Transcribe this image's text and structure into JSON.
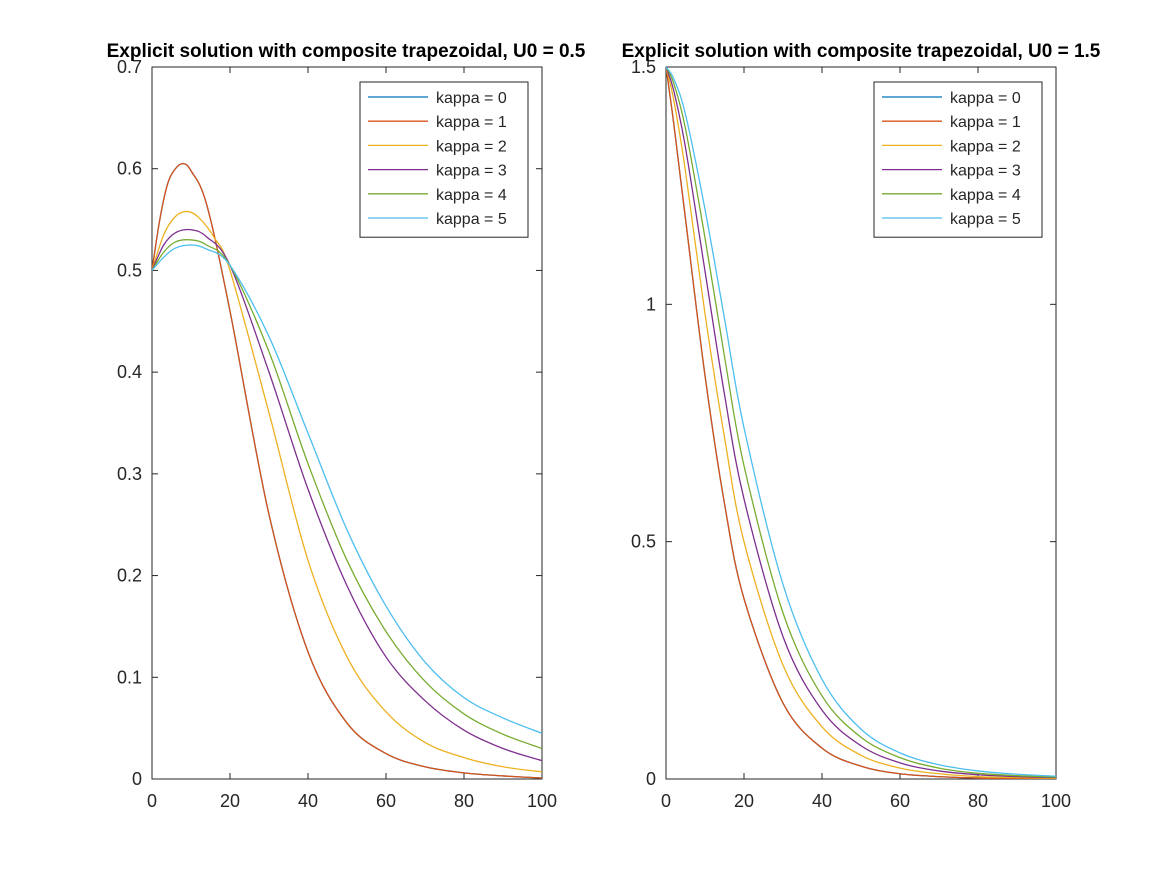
{
  "figure": {
    "background": "#ffffff",
    "axes_color": "#262626"
  },
  "chart_data": [
    {
      "type": "line",
      "title": "Explicit solution with composite trapezoidal, U0 = 0.5",
      "xlabel": "",
      "ylabel": "",
      "xlim": [
        0,
        100
      ],
      "ylim": [
        0,
        0.7
      ],
      "xticks": [
        "0",
        "20",
        "40",
        "60",
        "80",
        "100"
      ],
      "yticks": [
        "0",
        "0.1",
        "0.2",
        "0.3",
        "0.4",
        "0.5",
        "0.6",
        "0.7"
      ],
      "grid": false,
      "legend_position": "top-right",
      "series": [
        {
          "name": "kappa = 0",
          "color": "#0072BD",
          "x": [
            0,
            2,
            4,
            6,
            8,
            10,
            14,
            20,
            30,
            40,
            50,
            60,
            70,
            80,
            90,
            100
          ],
          "y": [
            0.5,
            0.55,
            0.585,
            0.6,
            0.605,
            0.598,
            0.565,
            0.46,
            0.26,
            0.125,
            0.055,
            0.025,
            0.012,
            0.006,
            0.003,
            0.001
          ]
        },
        {
          "name": "kappa = 1",
          "color": "#D95319",
          "x": [
            0,
            2,
            4,
            6,
            8,
            10,
            14,
            20,
            30,
            40,
            50,
            60,
            70,
            80,
            90,
            100
          ],
          "y": [
            0.5,
            0.55,
            0.585,
            0.6,
            0.605,
            0.598,
            0.565,
            0.46,
            0.26,
            0.125,
            0.055,
            0.025,
            0.012,
            0.006,
            0.003,
            0.001
          ]
        },
        {
          "name": "kappa = 2",
          "color": "#EDB120",
          "x": [
            0,
            3,
            6,
            9,
            12,
            16,
            20,
            30,
            40,
            50,
            60,
            70,
            80,
            90,
            100
          ],
          "y": [
            0.5,
            0.535,
            0.553,
            0.558,
            0.552,
            0.532,
            0.5,
            0.36,
            0.215,
            0.12,
            0.066,
            0.036,
            0.021,
            0.012,
            0.007
          ]
        },
        {
          "name": "kappa = 3",
          "color": "#7E2F8E",
          "x": [
            0,
            3,
            6,
            10,
            14,
            20,
            30,
            40,
            50,
            60,
            70,
            80,
            90,
            100
          ],
          "y": [
            0.5,
            0.525,
            0.537,
            0.54,
            0.533,
            0.505,
            0.4,
            0.285,
            0.19,
            0.12,
            0.077,
            0.048,
            0.03,
            0.018
          ]
        },
        {
          "name": "kappa = 4",
          "color": "#77AC30",
          "x": [
            0,
            3,
            6,
            10,
            14,
            20,
            30,
            40,
            50,
            60,
            70,
            80,
            90,
            100
          ],
          "y": [
            0.5,
            0.518,
            0.528,
            0.53,
            0.525,
            0.505,
            0.42,
            0.31,
            0.215,
            0.145,
            0.096,
            0.064,
            0.044,
            0.03
          ]
        },
        {
          "name": "kappa = 5",
          "color": "#4DBEEE",
          "x": [
            0,
            3,
            6,
            10,
            14,
            20,
            30,
            40,
            50,
            60,
            70,
            80,
            90,
            100
          ],
          "y": [
            0.5,
            0.513,
            0.522,
            0.525,
            0.521,
            0.505,
            0.435,
            0.34,
            0.245,
            0.17,
            0.115,
            0.08,
            0.06,
            0.045
          ]
        }
      ]
    },
    {
      "type": "line",
      "title": "Explicit solution with composite trapezoidal, U0 = 1.5",
      "xlabel": "",
      "ylabel": "",
      "xlim": [
        0,
        100
      ],
      "ylim": [
        0,
        1.5
      ],
      "xticks": [
        "0",
        "20",
        "40",
        "60",
        "80",
        "100"
      ],
      "yticks": [
        "0",
        "0.5",
        "1",
        "1.5"
      ],
      "grid": false,
      "legend_position": "top-right",
      "series": [
        {
          "name": "kappa = 0",
          "color": "#0072BD",
          "x": [
            0,
            2,
            5,
            10,
            15,
            20,
            30,
            40,
            50,
            60,
            70,
            80,
            90,
            100
          ],
          "y": [
            1.5,
            1.38,
            1.18,
            0.85,
            0.58,
            0.38,
            0.16,
            0.065,
            0.027,
            0.011,
            0.005,
            0.002,
            0.001,
            0.0005
          ]
        },
        {
          "name": "kappa = 1",
          "color": "#D95319",
          "x": [
            0,
            2,
            5,
            10,
            15,
            20,
            30,
            40,
            50,
            60,
            70,
            80,
            90,
            100
          ],
          "y": [
            1.5,
            1.38,
            1.18,
            0.85,
            0.58,
            0.38,
            0.16,
            0.065,
            0.027,
            0.011,
            0.005,
            0.002,
            0.001,
            0.0005
          ]
        },
        {
          "name": "kappa = 2",
          "color": "#EDB120",
          "x": [
            0,
            2,
            5,
            10,
            15,
            20,
            30,
            40,
            50,
            60,
            70,
            80,
            90,
            100
          ],
          "y": [
            1.5,
            1.43,
            1.28,
            0.98,
            0.72,
            0.5,
            0.24,
            0.11,
            0.05,
            0.023,
            0.011,
            0.005,
            0.003,
            0.0015
          ]
        },
        {
          "name": "kappa = 3",
          "color": "#7E2F8E",
          "x": [
            0,
            2,
            5,
            10,
            15,
            20,
            30,
            40,
            50,
            60,
            70,
            80,
            90,
            100
          ],
          "y": [
            1.5,
            1.45,
            1.33,
            1.07,
            0.81,
            0.59,
            0.3,
            0.145,
            0.07,
            0.034,
            0.017,
            0.009,
            0.005,
            0.003
          ]
        },
        {
          "name": "kappa = 4",
          "color": "#77AC30",
          "x": [
            0,
            2,
            5,
            10,
            15,
            20,
            30,
            40,
            50,
            60,
            70,
            80,
            90,
            100
          ],
          "y": [
            1.5,
            1.465,
            1.37,
            1.14,
            0.89,
            0.66,
            0.35,
            0.175,
            0.088,
            0.045,
            0.023,
            0.012,
            0.007,
            0.004
          ]
        },
        {
          "name": "kappa = 5",
          "color": "#4DBEEE",
          "x": [
            0,
            2,
            5,
            10,
            15,
            20,
            30,
            40,
            50,
            60,
            70,
            80,
            90,
            100
          ],
          "y": [
            1.5,
            1.475,
            1.4,
            1.2,
            0.97,
            0.74,
            0.41,
            0.21,
            0.105,
            0.055,
            0.03,
            0.017,
            0.01,
            0.006
          ]
        }
      ]
    }
  ]
}
